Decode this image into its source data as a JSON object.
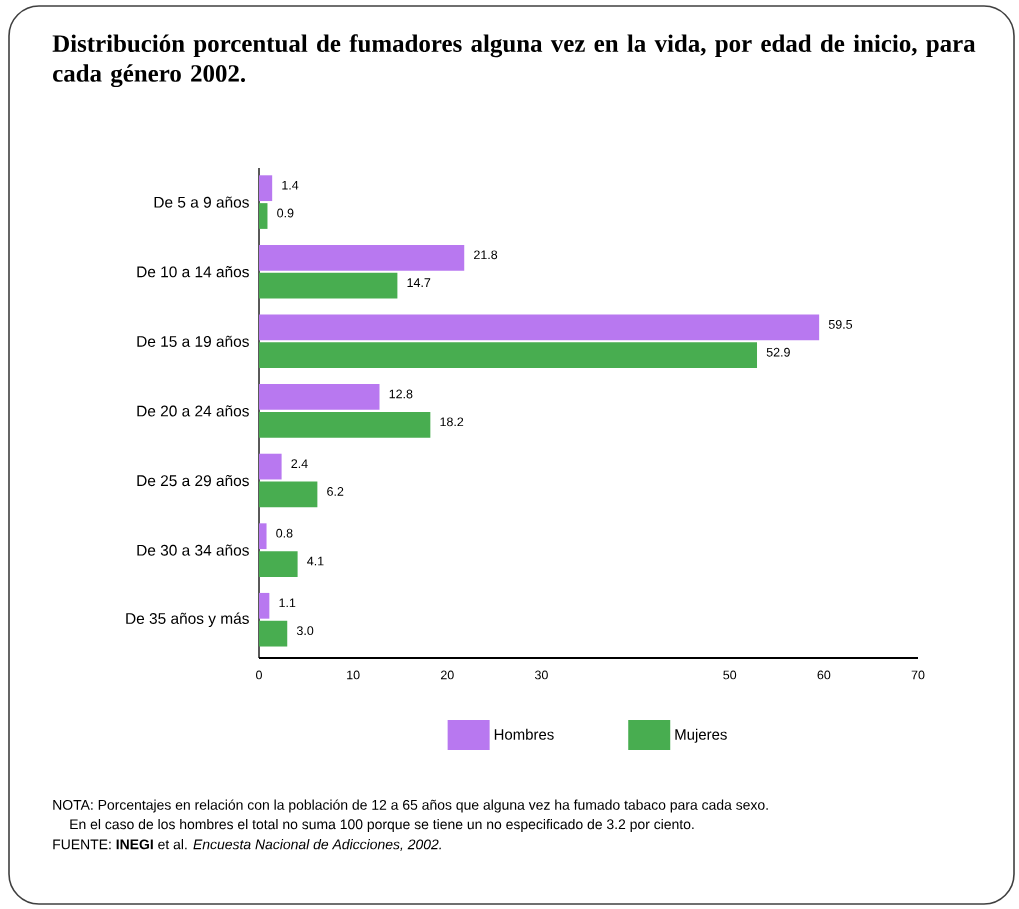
{
  "chart_data": {
    "type": "bar",
    "orientation": "horizontal",
    "title": "Distribución porcentual de fumadores alguna vez en la vida, por edad de inicio, para cada género 2002.",
    "categories": [
      "De 5 a 9 años",
      "De 10 a 14 años",
      "De 15 a 19 años",
      "De 20 a 24 años",
      "De 25 a 29 años",
      "De 30 a 34 años",
      "De 35 años y más"
    ],
    "series": [
      {
        "name": "Hombres",
        "color": "#b878f0",
        "values": [
          1.4,
          21.8,
          59.5,
          12.8,
          2.4,
          0.8,
          1.1
        ],
        "value_labels": [
          "1.4",
          "21.8",
          "59.5",
          "12.8",
          "2.4",
          "0.8",
          "1.1"
        ]
      },
      {
        "name": "Mujeres",
        "color": "#48ad50",
        "values": [
          0.9,
          14.7,
          52.9,
          18.2,
          6.2,
          4.1,
          3.0
        ],
        "value_labels": [
          "0.9",
          "14.7",
          "52.9",
          "18.2",
          "6.2",
          "4.1",
          "3.0"
        ]
      }
    ],
    "xlim": [
      0,
      70
    ],
    "xticks": [
      0,
      10,
      20,
      30,
      50,
      60,
      70
    ],
    "legend": "bottom",
    "annotations": [
      "NOTA: Porcentajes en relación con la población de 12 a 65 años que alguna vez ha fumado tabaco para cada sexo.",
      "En el caso de los hombres el total no suma 100 porque se tiene un no especificado de 3.2 por ciento.",
      "FUENTE: **INEGI** et al. *Encuesta Nacional de Adicciones, 2002.*"
    ]
  }
}
